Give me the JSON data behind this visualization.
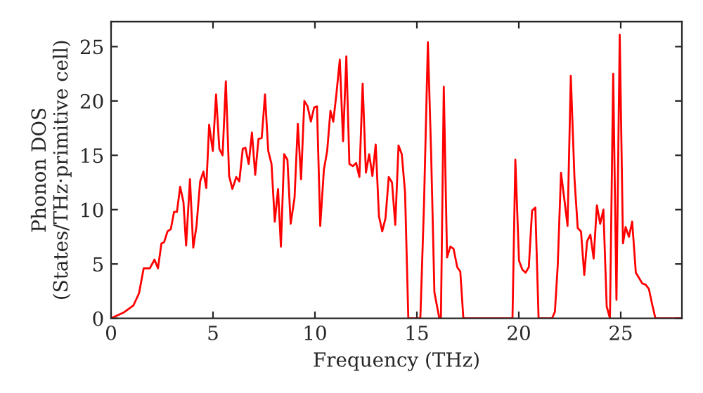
{
  "chart_data": {
    "type": "line",
    "xlabel": "Frequency (THz)",
    "ylabel": "Phonon DOS\n(States/THz·primitive cell)",
    "xlim": [
      0,
      28
    ],
    "ylim": [
      0,
      27.3
    ],
    "xticks": [
      0,
      5,
      10,
      15,
      20,
      25
    ],
    "yticks": [
      0,
      5,
      10,
      15,
      20,
      25
    ],
    "grid": false,
    "legend": false,
    "marker": "none",
    "line_style": "solid",
    "series": [
      {
        "color": "#ff0000",
        "x": [
          0,
          0.64,
          1.1,
          1.37,
          1.6,
          1.9,
          2.13,
          2.3,
          2.47,
          2.6,
          2.77,
          2.93,
          3.09,
          3.23,
          3.39,
          3.55,
          3.68,
          3.87,
          4.03,
          4.19,
          4.37,
          4.53,
          4.67,
          4.81,
          4.99,
          5.15,
          5.31,
          5.47,
          5.63,
          5.79,
          5.95,
          6.14,
          6.29,
          6.46,
          6.59,
          6.75,
          6.91,
          7.07,
          7.23,
          7.39,
          7.55,
          7.71,
          7.87,
          8.03,
          8.19,
          8.33,
          8.49,
          8.65,
          8.81,
          9.0,
          9.16,
          9.32,
          9.48,
          9.64,
          9.8,
          9.96,
          10.1,
          10.26,
          10.44,
          10.6,
          10.76,
          10.9,
          11.05,
          11.22,
          11.38,
          11.54,
          11.69,
          11.86,
          12.02,
          12.18,
          12.34,
          12.5,
          12.66,
          12.82,
          12.98,
          13.14,
          13.3,
          13.46,
          13.62,
          13.78,
          13.94,
          14.1,
          14.26,
          14.42,
          14.58,
          15.17,
          15.35,
          15.54,
          15.7,
          15.86,
          16.1,
          16.18,
          16.32,
          16.48,
          16.64,
          16.8,
          16.98,
          17.13,
          17.28,
          19.69,
          19.83,
          20.01,
          20.17,
          20.33,
          20.49,
          20.65,
          20.81,
          20.97,
          21.63,
          21.77,
          21.91,
          22.07,
          22.23,
          22.39,
          22.55,
          22.73,
          22.89,
          23.05,
          23.21,
          23.35,
          23.51,
          23.67,
          23.83,
          23.99,
          24.15,
          24.31,
          24.47,
          24.63,
          24.79,
          24.95,
          25.11,
          25.24,
          25.4,
          25.56,
          25.74,
          25.9,
          26.06,
          26.22,
          26.38,
          26.54,
          26.7,
          28
        ],
        "values": [
          0,
          0.56,
          1.2,
          2.3,
          4.6,
          4.6,
          5.4,
          4.6,
          6.9,
          7.0,
          8.0,
          8.2,
          9.8,
          9.8,
          12.1,
          10.7,
          6.7,
          12.8,
          6.5,
          8.5,
          12.6,
          13.5,
          12.0,
          17.8,
          15.4,
          20.6,
          15.6,
          15.0,
          21.8,
          13.1,
          11.9,
          13.0,
          12.6,
          15.6,
          15.7,
          14.2,
          17.1,
          13.2,
          16.5,
          16.6,
          20.6,
          15.4,
          14.2,
          8.9,
          11.9,
          6.6,
          15.1,
          14.6,
          8.7,
          11.1,
          17.9,
          12.8,
          20.0,
          19.5,
          18.1,
          19.4,
          19.5,
          8.5,
          13.7,
          15.4,
          19.1,
          18.1,
          20.6,
          23.8,
          16.3,
          24.1,
          14.2,
          14.0,
          14.3,
          13.0,
          21.6,
          13.4,
          15.1,
          13.1,
          16.0,
          9.4,
          8.0,
          9.2,
          13.0,
          12.5,
          8.6,
          15.9,
          15.1,
          11.6,
          0,
          0,
          10.5,
          25.4,
          15.1,
          2.4,
          0,
          0,
          21.3,
          5.6,
          6.6,
          6.4,
          4.7,
          4.3,
          0,
          0,
          14.6,
          5.3,
          4.5,
          4.2,
          4.7,
          9.9,
          10.2,
          0,
          0,
          0.6,
          4.9,
          13.4,
          11.0,
          8.5,
          22.3,
          12.9,
          8.3,
          8.0,
          4.0,
          7.1,
          7.7,
          5.5,
          10.4,
          8.7,
          10.0,
          1.1,
          0,
          22.5,
          1.7,
          26.1,
          6.9,
          8.4,
          7.5,
          8.9,
          4.2,
          3.7,
          3.2,
          3.1,
          2.7,
          1.3,
          0,
          0
        ]
      }
    ]
  }
}
